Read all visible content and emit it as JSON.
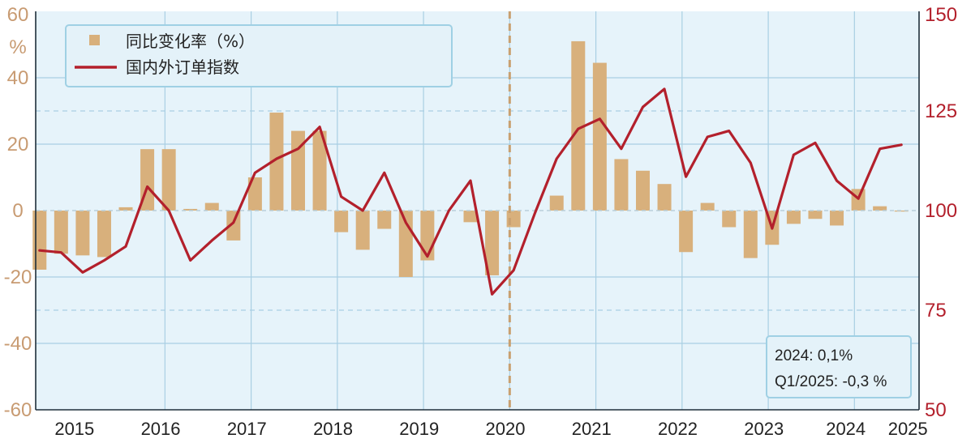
{
  "chart_data": {
    "type": "bar+line",
    "title": "",
    "colors": {
      "bar": "#d8b07c",
      "line": "#b3202c",
      "plot_background": "#e6f3fa",
      "grid": "#a9cfe3",
      "left_axis_text": "#c89b72",
      "right_axis_text": "#b3202c",
      "divider": "#c9a070"
    },
    "left_axis": {
      "unit": "%",
      "ylim": [
        -60,
        60
      ],
      "ticks": [
        60,
        40,
        20,
        0,
        -20,
        -40,
        -60
      ],
      "tick_labels": [
        "60",
        "40",
        "20",
        "0",
        "-20",
        "-40",
        "-60"
      ]
    },
    "right_axis": {
      "ylim": [
        50,
        150
      ],
      "ticks": [
        150,
        125,
        100,
        75,
        50
      ],
      "tick_labels": [
        "150",
        "125",
        "100",
        "75",
        "50"
      ]
    },
    "x_axis": {
      "start": 2015.0,
      "end": 2025.25,
      "year_labels": [
        "2015",
        "2016",
        "2017",
        "2018",
        "2019",
        "2020",
        "2021",
        "2022",
        "2023",
        "2024",
        "2025"
      ],
      "divider_year": 2020.5
    },
    "grid": true,
    "legend": {
      "placement": "top-left",
      "entries": [
        "同比变化率（%）",
        "国内外订单指数"
      ]
    },
    "series": [
      {
        "name": "同比变化率（%）",
        "type": "bar",
        "axis": "left",
        "x": [
          2015.0,
          2015.25,
          2015.5,
          2015.75,
          2016.0,
          2016.25,
          2016.5,
          2016.75,
          2017.0,
          2017.25,
          2017.5,
          2017.75,
          2018.0,
          2018.25,
          2018.5,
          2018.75,
          2019.0,
          2019.25,
          2019.5,
          2019.75,
          2020.0,
          2020.25,
          2020.5,
          2020.75,
          2021.0,
          2021.25,
          2021.5,
          2021.75,
          2022.0,
          2022.25,
          2022.5,
          2022.75,
          2023.0,
          2023.25,
          2023.5,
          2023.75,
          2024.0,
          2024.25,
          2024.5,
          2024.75,
          2025.0
        ],
        "values": [
          -17.8,
          -13,
          -13.5,
          -14,
          1,
          18.5,
          18.5,
          0.5,
          2.3,
          -9,
          10,
          29.5,
          24,
          24,
          -6.5,
          -11.8,
          -5.5,
          -20,
          -15,
          0,
          -3.5,
          -19.5,
          -5,
          0,
          4.5,
          51,
          44.5,
          15.5,
          12,
          8,
          -12.5,
          2.3,
          -5,
          -14.3,
          -10.3,
          -4,
          -2.5,
          -4.5,
          6.5,
          1.3,
          -0.3
        ]
      },
      {
        "name": "国内外订单指数",
        "type": "line",
        "axis": "right",
        "x": [
          2015.0,
          2015.25,
          2015.5,
          2015.75,
          2016.0,
          2016.25,
          2016.5,
          2016.75,
          2017.0,
          2017.25,
          2017.5,
          2017.75,
          2018.0,
          2018.25,
          2018.5,
          2018.75,
          2019.0,
          2019.25,
          2019.5,
          2019.75,
          2020.0,
          2020.25,
          2020.5,
          2020.75,
          2021.0,
          2021.25,
          2021.5,
          2021.75,
          2022.0,
          2022.25,
          2022.5,
          2022.75,
          2023.0,
          2023.25,
          2023.5,
          2023.75,
          2024.0,
          2024.25,
          2024.5,
          2024.75,
          2025.0
        ],
        "values": [
          90,
          89.5,
          84.5,
          87.5,
          91,
          106,
          100,
          87.5,
          92.5,
          97,
          109.5,
          113,
          115.5,
          121,
          103.5,
          100,
          109.5,
          97,
          88.5,
          100,
          107.5,
          79,
          85,
          99.5,
          113,
          120.5,
          123,
          115.5,
          126,
          130.5,
          108.5,
          118.5,
          120,
          112,
          95.5,
          114,
          117,
          107.5,
          103,
          115.5,
          116.5
        ]
      }
    ],
    "annotation": {
      "placement": "bottom-right",
      "lines": [
        "2024: 0,1%",
        "Q1/2025: -0,3 %"
      ]
    }
  }
}
